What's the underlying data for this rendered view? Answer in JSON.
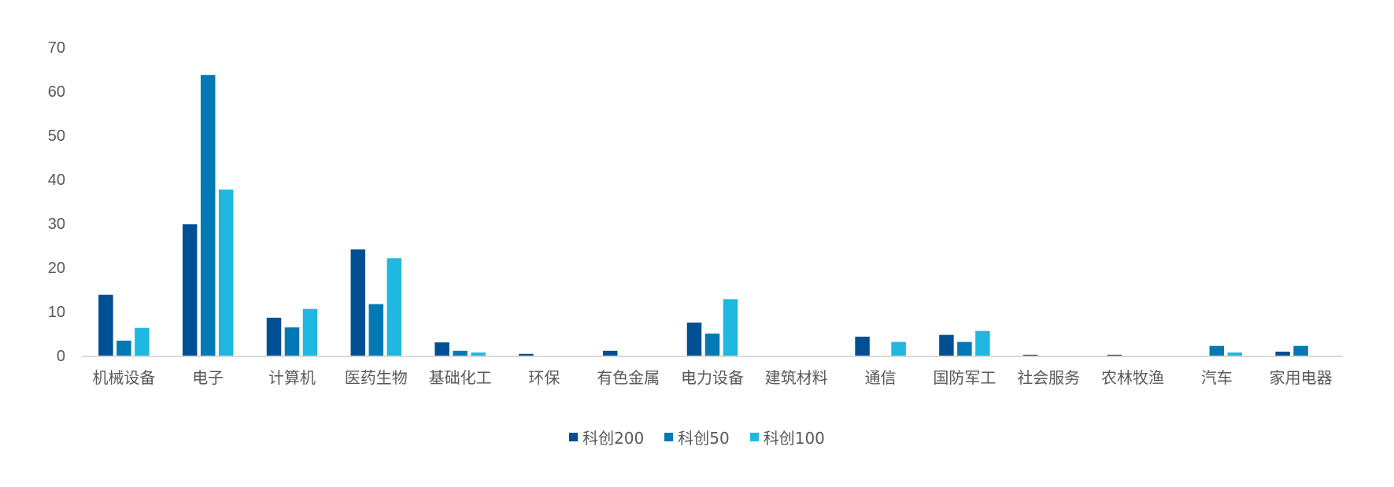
{
  "chart_data": {
    "type": "bar",
    "title": "",
    "xlabel": "",
    "ylabel": "",
    "ylim": [
      0,
      70
    ],
    "yticks": [
      0,
      10,
      20,
      30,
      40,
      50,
      60,
      70
    ],
    "grid": false,
    "legend_position": "bottom",
    "categories": [
      "机械设备",
      "电子",
      "计算机",
      "医药生物",
      "基础化工",
      "环保",
      "有色金属",
      "电力设备",
      "建筑材料",
      "通信",
      "国防军工",
      "社会服务",
      "农林牧渔",
      "汽车",
      "家用电器"
    ],
    "series": [
      {
        "name": "科创200",
        "color": "#004F95",
        "values": [
          13.8,
          29.8,
          8.6,
          24.1,
          3.0,
          0.4,
          1.1,
          7.5,
          0,
          4.3,
          4.7,
          0.2,
          0.2,
          0,
          0.9
        ]
      },
      {
        "name": "科创50",
        "color": "#0079B4",
        "values": [
          3.4,
          63.7,
          6.4,
          11.7,
          1.1,
          0,
          0,
          5.0,
          0,
          0,
          3.1,
          0,
          0,
          2.2,
          2.2
        ]
      },
      {
        "name": "科创100",
        "color": "#1EB8E0",
        "values": [
          6.3,
          37.7,
          10.6,
          22.1,
          0.7,
          0,
          0,
          12.8,
          0,
          3.1,
          5.6,
          0,
          0,
          0.7,
          0
        ]
      }
    ]
  }
}
